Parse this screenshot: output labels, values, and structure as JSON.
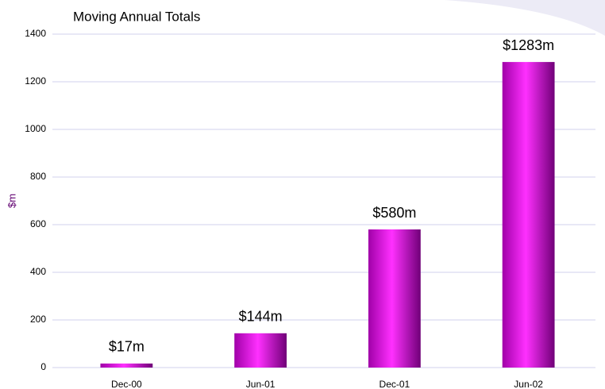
{
  "chart_data": {
    "type": "bar",
    "title": "Moving Annual Totals",
    "y_label": "$m",
    "categories": [
      "Dec-00",
      "Jun-01",
      "Dec-01",
      "Jun-02"
    ],
    "values": [
      17,
      144,
      580,
      1283
    ],
    "value_labels": [
      "$17m",
      "$144m",
      "$580m",
      "$1283m"
    ],
    "color": "#e010e0",
    "ylim": [
      0,
      1400
    ],
    "yticks": [
      0,
      200,
      400,
      600,
      800,
      1000,
      1200,
      1400
    ],
    "grid": true
  }
}
